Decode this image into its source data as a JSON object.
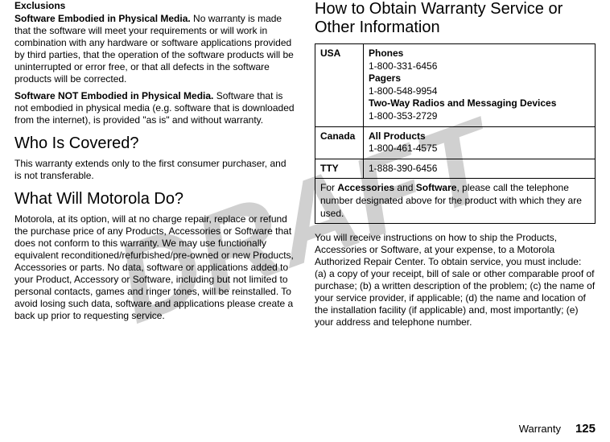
{
  "watermark": "DRAFT",
  "left": {
    "exclusions_heading": "Exclusions",
    "para1_bold": "Software Embodied in Physical Media.",
    "para1_rest": " No warranty is made that the software will meet your requirements or will work in combination with any hardware or software applications provided by third parties, that the operation of the software products will be uninterrupted or error free, or that all defects in the software products will be corrected.",
    "para2_bold": "Software NOT Embodied in Physical Media.",
    "para2_rest": " Software that is not embodied in physical media (e.g. software that is downloaded from the internet), is provided \"as is\" and without warranty.",
    "h2_who": "Who Is Covered?",
    "who_body": "This warranty extends only to the first consumer purchaser, and is not transferable.",
    "h2_what": "What Will Motorola Do?",
    "what_body": "Motorola, at its option, will at no charge repair, replace or refund the purchase price of any Products, Accessories or Software that does not conform to this warranty. We may use functionally equivalent reconditioned/refurbished/pre-owned or new Products, Accessories or parts. No data, software or applications added to your Product, Accessory or Software, including but not limited to personal contacts, games and ringer tones, will be reinstalled. To avoid losing such data, software and applications please create a back up prior to requesting service."
  },
  "right": {
    "h2_obtain": "How to Obtain Warranty Service or Other Information",
    "table": {
      "rows": [
        {
          "label": "USA",
          "lines": [
            {
              "bold": true,
              "text": "Phones"
            },
            {
              "bold": false,
              "text": "1-800-331-6456"
            },
            {
              "bold": true,
              "text": "Pagers"
            },
            {
              "bold": false,
              "text": "1-800-548-9954"
            },
            {
              "bold": true,
              "text": "Two-Way Radios and Messaging Devices"
            },
            {
              "bold": false,
              "text": "1-800-353-2729"
            }
          ]
        },
        {
          "label": "Canada",
          "lines": [
            {
              "bold": true,
              "text": "All Products"
            },
            {
              "bold": false,
              "text": "1-800-461-4575"
            }
          ]
        },
        {
          "label": "TTY",
          "lines": [
            {
              "bold": false,
              "text": "1-888-390-6456"
            }
          ]
        }
      ],
      "footer_pre": "For ",
      "footer_b1": "Accessories",
      "footer_mid": " and ",
      "footer_b2": "Software",
      "footer_post": ", please call the telephone number designated above for the product with which they are used."
    },
    "after_table": "You will receive instructions on how to ship the Products, Accessories or Software, at your expense, to a Motorola Authorized Repair Center. To obtain service, you must include: (a) a copy of your receipt, bill of sale or other comparable proof of purchase; (b) a written description of the problem; (c) the name of your service provider, if applicable; (d) the name and location of the installation facility (if applicable) and, most importantly; (e) your address and telephone number."
  },
  "footer": {
    "section": "Warranty",
    "page": "125"
  }
}
